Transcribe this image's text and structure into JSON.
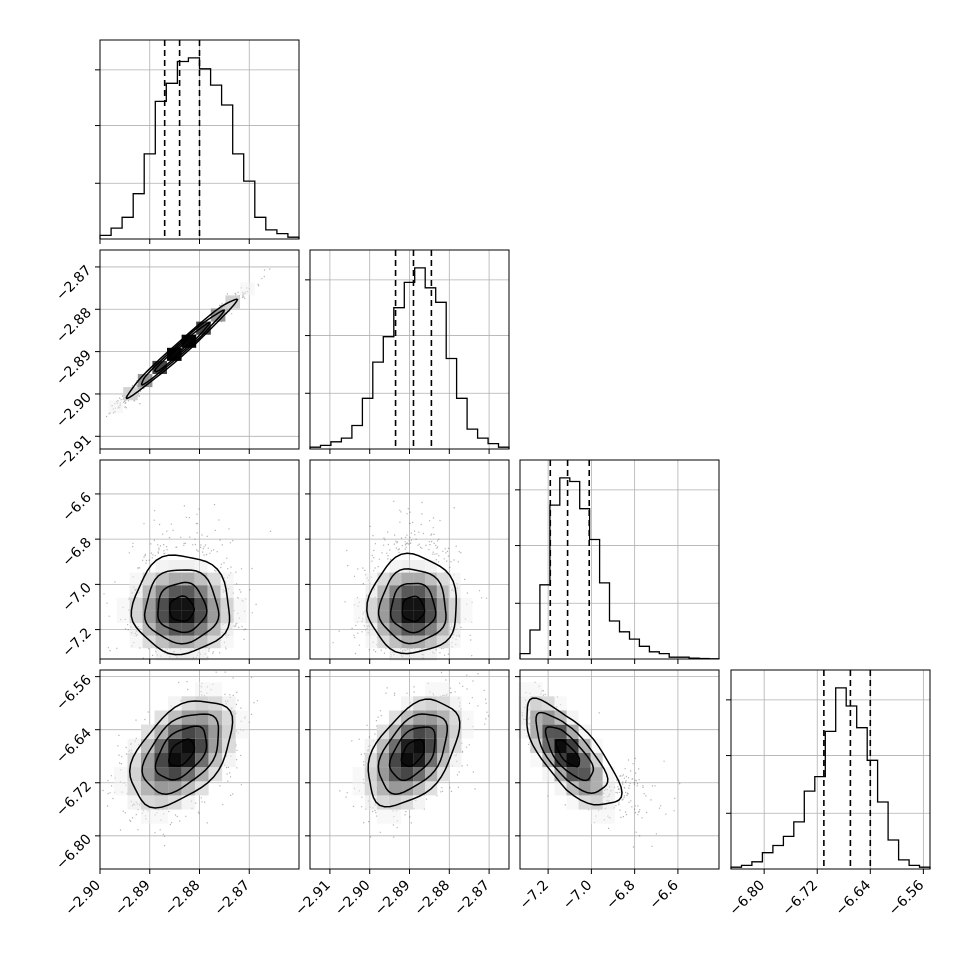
{
  "chart_data": {
    "type": "corner",
    "grid": true,
    "params": [
      {
        "hist": {
          "range": [
            -2.9,
            -2.86
          ],
          "ticks": [
            "−2.90",
            "−2.89",
            "−2.88",
            "−2.87"
          ],
          "tick_values": [
            -2.9,
            -2.89,
            -2.88,
            -2.87
          ],
          "quantiles": [
            -2.887,
            -2.884,
            -2.88
          ],
          "counts": [
            0.2,
            0.6,
            1.2,
            2.5,
            4.7,
            7.6,
            8.6,
            9.8,
            10.0,
            9.4,
            8.5,
            7.4,
            4.7,
            3.2,
            1.2,
            0.5,
            0.3,
            0.1
          ]
        },
        "axis_ticks": [
          "−2.90",
          "−2.89",
          "−2.88",
          "−2.87"
        ],
        "axis_tick_values": [
          -2.9,
          -2.89,
          -2.88,
          -2.87
        ]
      },
      {
        "hist": {
          "range": [
            -2.915,
            -2.865
          ],
          "quantiles": [
            -2.8935,
            -2.889,
            -2.8845
          ],
          "counts": [
            0.1,
            0.2,
            0.4,
            0.6,
            1.3,
            2.8,
            4.8,
            6.2,
            7.8,
            9.2,
            10.0,
            8.9,
            8.1,
            5.0,
            2.8,
            1.1,
            0.6,
            0.3,
            0.1
          ]
        },
        "axis_ticks": [
          "−2.91",
          "−2.90",
          "−2.89",
          "−2.88",
          "−2.87"
        ],
        "axis_tick_values": [
          -2.91,
          -2.9,
          -2.89,
          -2.88,
          -2.87
        ],
        "y_ticks": [
          "−2.87",
          "−2.88",
          "−2.89",
          "−2.90",
          "−2.91"
        ],
        "y_tick_values": [
          -2.87,
          -2.88,
          -2.89,
          -2.9,
          -2.91
        ]
      },
      {
        "hist": {
          "range": [
            -7.33,
            -6.41
          ],
          "quantiles": [
            -7.19,
            -7.11,
            -7.01
          ],
          "counts": [
            0.3,
            1.6,
            4.1,
            8.5,
            10.0,
            9.8,
            8.3,
            6.6,
            4.2,
            2.1,
            1.5,
            1.1,
            0.7,
            0.4,
            0.3,
            0.1,
            0.1,
            0.05,
            0.03,
            0.01
          ]
        },
        "axis_ticks": [
          "−7.2",
          "−7.0",
          "−6.8",
          "−6.6"
        ],
        "axis_tick_values": [
          -7.2,
          -7.0,
          -6.8,
          -6.6
        ],
        "y_ticks": [
          "−6.6",
          "−6.8",
          "−7.0",
          "−7.2"
        ],
        "y_tick_values": [
          -6.6,
          -6.8,
          -7.0,
          -7.2
        ]
      },
      {
        "hist": {
          "range": [
            -6.85,
            -6.55
          ],
          "quantiles": [
            -6.71,
            -6.67,
            -6.64
          ],
          "counts": [
            0.1,
            0.2,
            0.4,
            0.9,
            1.3,
            1.8,
            2.6,
            4.3,
            5.1,
            7.6,
            10.0,
            9.0,
            7.8,
            6.0,
            3.7,
            1.6,
            0.5,
            0.2,
            0.1
          ]
        },
        "axis_ticks": [
          "−6.80",
          "−6.72",
          "−6.64",
          "−6.56"
        ],
        "axis_tick_values": [
          -6.8,
          -6.72,
          -6.64,
          -6.56
        ],
        "y_ticks": [
          "−6.56",
          "−6.64",
          "−6.72",
          "−6.80"
        ],
        "y_tick_values": [
          -6.56,
          -6.64,
          -6.72,
          -6.8
        ]
      }
    ],
    "pairs": [
      {
        "row": 1,
        "col": 0,
        "center": [
          -2.8836,
          -2.8891
        ],
        "sd": [
          0.0055,
          0.0058
        ],
        "corr": 0.985,
        "bins": [
          12,
          12
        ]
      },
      {
        "row": 2,
        "col": 0,
        "center": [
          -2.8836,
          -7.115
        ],
        "sd": [
          0.0049,
          0.095
        ],
        "corr": 0.0,
        "bins": [
          12,
          12
        ]
      },
      {
        "row": 2,
        "col": 1,
        "center": [
          -2.8891,
          -7.115
        ],
        "sd": [
          0.0056,
          0.095
        ],
        "corr": 0.0,
        "bins": [
          12,
          12
        ]
      },
      {
        "row": 3,
        "col": 0,
        "center": [
          -2.8836,
          -6.675
        ],
        "sd": [
          0.0051,
          0.04
        ],
        "corr": 0.45,
        "bins": [
          12,
          12
        ]
      },
      {
        "row": 3,
        "col": 1,
        "center": [
          -2.8891,
          -6.675
        ],
        "sd": [
          0.0057,
          0.04
        ],
        "corr": 0.45,
        "bins": [
          12,
          12
        ]
      },
      {
        "row": 3,
        "col": 2,
        "center": [
          -7.115,
          -6.675
        ],
        "sd": [
          0.095,
          0.04
        ],
        "corr": -0.72,
        "bins": [
          12,
          12
        ]
      }
    ],
    "contour_levels": [
      0.5,
      1.0,
      1.5,
      2.0
    ],
    "colors": {
      "line": "#000000",
      "grid": "#b0b0b0",
      "points": "#555555",
      "fill_dark": "#000000",
      "background": "#ffffff"
    }
  }
}
